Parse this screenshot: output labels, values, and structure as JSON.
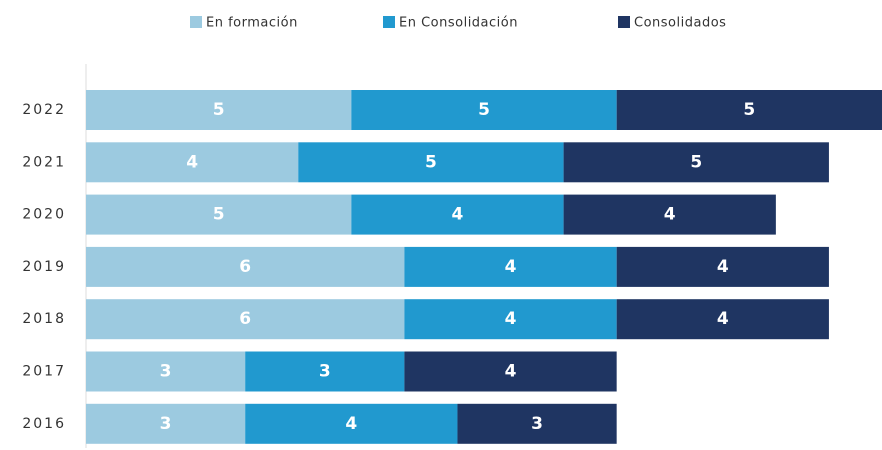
{
  "chart_data": {
    "type": "stacked-bar-horizontal",
    "categories": [
      "2022",
      "2021",
      "2020",
      "2019",
      "2018",
      "2017",
      "2016"
    ],
    "series": [
      {
        "name": "En formación",
        "color": "#9ccae0",
        "values": [
          5,
          4,
          5,
          6,
          6,
          3,
          3
        ]
      },
      {
        "name": "En Consolidación",
        "color": "#2199cf",
        "values": [
          5,
          5,
          4,
          4,
          4,
          3,
          4
        ]
      },
      {
        "name": "Consolidados",
        "color": "#1f3562",
        "values": [
          5,
          5,
          4,
          4,
          4,
          4,
          3
        ]
      }
    ],
    "xlim": [
      0,
      15
    ],
    "legend": "top"
  }
}
